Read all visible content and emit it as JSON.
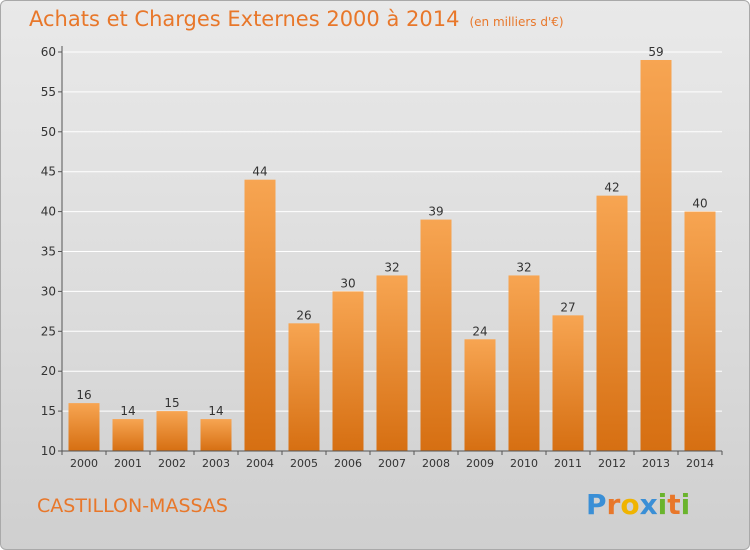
{
  "title": "Achats et Charges Externes 2000 à 2014",
  "subtitle": "(en milliers d'€)",
  "commune": "CASTILLON-MASSAS",
  "logo": {
    "text": "Proxiti",
    "letters": [
      {
        "ch": "P",
        "color": "#3a8fd6"
      },
      {
        "ch": "r",
        "color": "#e8772a"
      },
      {
        "ch": "o",
        "color": "#f0b400"
      },
      {
        "ch": "x",
        "color": "#3a8fd6"
      },
      {
        "ch": "i",
        "color": "#6ab42d"
      },
      {
        "ch": "t",
        "color": "#e8772a"
      },
      {
        "ch": "i",
        "color": "#6ab42d"
      }
    ]
  },
  "colors": {
    "bar_light": "#f7a552",
    "bar_dark": "#d66f12",
    "title": "#e8772a",
    "grid": "#ffffff",
    "axis": "#555555",
    "text": "#333333"
  },
  "chart_data": {
    "type": "bar",
    "title": "Achats et Charges Externes 2000 à 2014",
    "subtitle": "(en milliers d'€)",
    "xlabel": "",
    "ylabel": "",
    "categories": [
      "2000",
      "2001",
      "2002",
      "2003",
      "2004",
      "2005",
      "2006",
      "2007",
      "2008",
      "2009",
      "2010",
      "2011",
      "2012",
      "2013",
      "2014"
    ],
    "values": [
      16,
      14,
      15,
      14,
      44,
      26,
      30,
      32,
      39,
      24,
      32,
      27,
      42,
      59,
      40
    ],
    "ylim": [
      10,
      60
    ],
    "yticks": [
      10,
      15,
      20,
      25,
      30,
      35,
      40,
      45,
      50,
      55,
      60
    ],
    "grid": true,
    "data_labels": true
  }
}
